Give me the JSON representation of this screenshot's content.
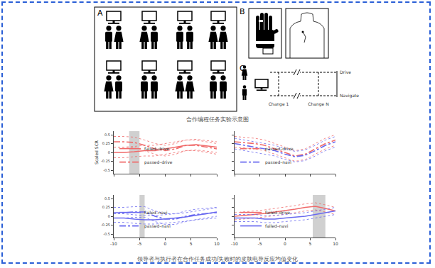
{
  "diagram": {
    "panel_labels": [
      "A",
      "B",
      "C"
    ],
    "timeline": {
      "top": "Drive",
      "bottom": "Navigate",
      "changes": [
        "Change 1",
        "Change N"
      ]
    }
  },
  "captions": {
    "diagram": "合作编程任务实验示意图",
    "charts": "领导者与执行者在合作任务成功/失败时的皮肤电导反应均值变化"
  },
  "chart_data": [
    {
      "type": "line",
      "y_label": "Scaled SCR",
      "x": [
        -10,
        -8,
        -6,
        -4,
        -2,
        0,
        2,
        4,
        6,
        8,
        10
      ],
      "xlim": [
        -10,
        10
      ],
      "xticks": [
        -10,
        -5,
        0,
        5,
        10
      ],
      "ylim": [
        -0.6,
        0.6
      ],
      "yticks": [
        -0.5,
        -0.25,
        0,
        0.25,
        0.5
      ],
      "tick_labels": "y",
      "legend": "lower left",
      "shaded_x": [
        -7,
        -5
      ],
      "series": [
        {
          "name": "failed–drive",
          "color": "#f06a6a",
          "line_style": "solid",
          "values": [
            0.0,
            0.0,
            0.02,
            0.05,
            0.05,
            0.1,
            0.15,
            0.2,
            0.22,
            0.18,
            0.15
          ],
          "lower": [
            -0.15,
            -0.15,
            -0.12,
            -0.1,
            -0.1,
            -0.05,
            0.0,
            0.05,
            0.07,
            0.03,
            0.0
          ],
          "upper": [
            0.15,
            0.15,
            0.17,
            0.2,
            0.2,
            0.25,
            0.3,
            0.35,
            0.37,
            0.33,
            0.3
          ]
        },
        {
          "name": "passed–drive",
          "color": "#f06a6a",
          "line_style": "dashdot",
          "values": [
            0.3,
            0.3,
            0.28,
            0.2,
            0.1,
            0.05,
            0.1,
            0.2,
            0.2,
            0.15,
            0.1
          ],
          "lower": [
            0.15,
            0.15,
            0.13,
            0.05,
            -0.05,
            -0.1,
            -0.05,
            0.05,
            0.05,
            0.0,
            -0.05
          ],
          "upper": [
            0.45,
            0.45,
            0.43,
            0.35,
            0.25,
            0.2,
            0.25,
            0.35,
            0.35,
            0.3,
            0.25
          ]
        }
      ]
    },
    {
      "type": "line",
      "x": [
        -10,
        -8,
        -6,
        -4,
        -2,
        0,
        2,
        4,
        6,
        8,
        10
      ],
      "xlim": [
        -10,
        10
      ],
      "xticks": [
        -10,
        -5,
        0,
        5,
        10
      ],
      "ylim": [
        -0.6,
        0.6
      ],
      "yticks": [
        -0.5,
        -0.25,
        0,
        0.25,
        0.5
      ],
      "tick_labels": false,
      "legend": "lower left",
      "series": [
        {
          "name": "passed–drive",
          "color": "#f06a6a",
          "line_style": "dashdot",
          "values": [
            0.3,
            0.28,
            0.25,
            0.2,
            0.1,
            0.0,
            -0.1,
            -0.05,
            0.1,
            0.25,
            0.35
          ],
          "lower": [
            0.15,
            0.13,
            0.1,
            0.05,
            -0.05,
            -0.15,
            -0.25,
            -0.2,
            -0.05,
            0.1,
            0.2
          ],
          "upper": [
            0.45,
            0.43,
            0.4,
            0.35,
            0.25,
            0.15,
            0.05,
            0.1,
            0.25,
            0.4,
            0.5
          ]
        },
        {
          "name": "passed–navi",
          "color": "#6a6af0",
          "line_style": "dashdot",
          "values": [
            0.25,
            0.2,
            0.15,
            0.1,
            0.05,
            -0.05,
            -0.12,
            -0.08,
            0.05,
            0.2,
            0.3
          ],
          "lower": [
            0.1,
            0.05,
            0.0,
            -0.05,
            -0.1,
            -0.2,
            -0.27,
            -0.23,
            -0.1,
            0.05,
            0.15
          ],
          "upper": [
            0.4,
            0.35,
            0.3,
            0.25,
            0.2,
            0.1,
            0.03,
            0.07,
            0.2,
            0.35,
            0.45
          ]
        }
      ]
    },
    {
      "type": "line",
      "x": [
        -10,
        -8,
        -6,
        -4,
        -2,
        0,
        2,
        4,
        6,
        8,
        10
      ],
      "xlim": [
        -10,
        10
      ],
      "xticks": [
        -10,
        -5,
        0,
        5,
        10
      ],
      "ylim": [
        -0.6,
        0.6
      ],
      "yticks": [
        -0.5,
        -0.25,
        0,
        0.25,
        0.5
      ],
      "legend": "lower left",
      "shaded_x": [
        -5,
        -4
      ],
      "series": [
        {
          "name": "failed–navi",
          "color": "#6a6af0",
          "line_style": "solid",
          "values": [
            -0.05,
            -0.05,
            -0.08,
            -0.1,
            -0.1,
            -0.08,
            -0.05,
            -0.02,
            0.03,
            0.08,
            0.12
          ],
          "lower": [
            -0.17,
            -0.17,
            -0.2,
            -0.22,
            -0.22,
            -0.2,
            -0.17,
            -0.14,
            -0.09,
            -0.04,
            0.0
          ],
          "upper": [
            0.07,
            0.07,
            0.04,
            0.02,
            0.02,
            0.04,
            0.07,
            0.1,
            0.15,
            0.2,
            0.24
          ]
        },
        {
          "name": "passed–navi",
          "color": "#6a6af0",
          "line_style": "dashdot",
          "values": [
            0.1,
            0.1,
            0.12,
            0.12,
            0.0,
            -0.08,
            -0.08,
            0.0,
            0.05,
            0.08,
            0.1
          ],
          "lower": [
            -0.05,
            -0.05,
            -0.03,
            -0.03,
            -0.15,
            -0.23,
            -0.23,
            -0.15,
            -0.1,
            -0.07,
            -0.05
          ],
          "upper": [
            0.25,
            0.25,
            0.27,
            0.27,
            0.15,
            0.07,
            0.07,
            0.15,
            0.2,
            0.23,
            0.25
          ]
        }
      ]
    },
    {
      "type": "line",
      "x": [
        -10,
        -8,
        -6,
        -4,
        -2,
        0,
        2,
        4,
        6,
        8,
        10
      ],
      "xlim": [
        -10,
        10
      ],
      "xticks": [
        -10,
        -5,
        0,
        5,
        10
      ],
      "ylim": [
        -0.6,
        0.6
      ],
      "yticks": [
        -0.5,
        -0.25,
        0,
        0.25,
        0.5
      ],
      "tick_labels": "x",
      "legend": "lower left",
      "shaded_x": [
        5.5,
        8
      ],
      "series": [
        {
          "name": "failed–drive",
          "color": "#f06a6a",
          "line_style": "solid",
          "values": [
            0.0,
            0.02,
            0.05,
            0.08,
            0.12,
            0.15,
            0.2,
            0.25,
            0.28,
            0.22,
            0.15
          ],
          "lower": [
            -0.1,
            -0.08,
            -0.05,
            -0.02,
            0.02,
            0.05,
            0.1,
            0.15,
            0.18,
            0.12,
            0.05
          ],
          "upper": [
            0.1,
            0.12,
            0.15,
            0.18,
            0.22,
            0.25,
            0.3,
            0.35,
            0.38,
            0.32,
            0.25
          ]
        },
        {
          "name": "failed–navi",
          "color": "#6a6af0",
          "line_style": "solid",
          "values": [
            -0.05,
            -0.05,
            -0.05,
            -0.08,
            -0.08,
            -0.05,
            -0.02,
            0.0,
            0.05,
            0.1,
            0.15
          ],
          "lower": [
            -0.15,
            -0.15,
            -0.15,
            -0.18,
            -0.18,
            -0.15,
            -0.12,
            -0.1,
            -0.05,
            0.0,
            0.05
          ],
          "upper": [
            0.05,
            0.05,
            0.05,
            0.02,
            0.02,
            0.05,
            0.08,
            0.1,
            0.15,
            0.2,
            0.25
          ]
        }
      ]
    }
  ]
}
